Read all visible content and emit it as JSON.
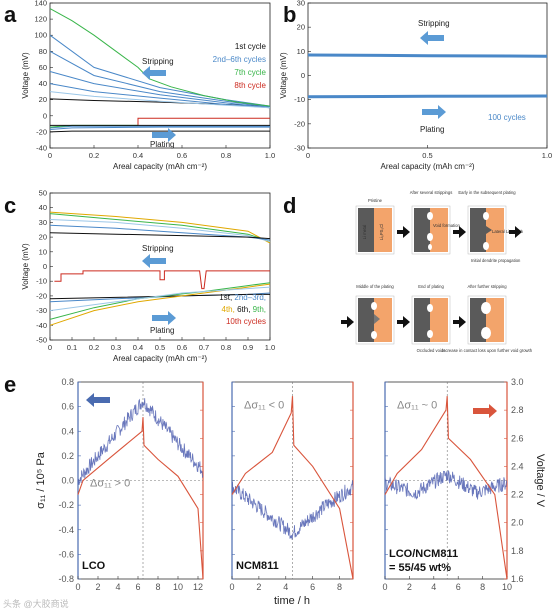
{
  "panel_labels": {
    "a": "a",
    "b": "b",
    "c": "c",
    "d": "d",
    "e": "e"
  },
  "colors": {
    "black": "#111111",
    "blue": "#4a88c8",
    "green": "#39b54a",
    "red": "#cc2a1f",
    "orange": "#e0a800",
    "lightblue": "#9cc7e8",
    "arrow": "#5b9bd5",
    "noise": "#4f5fb0",
    "voltage": "#d9553c",
    "metal": "#5a5a5a",
    "cathode": "#f3a46b"
  },
  "chart_data": [
    {
      "id": "a",
      "type": "line",
      "xlabel": "Areal capacity (mAh cm⁻²)",
      "ylabel": "Voltage (mV)",
      "xlim": [
        0,
        1.0
      ],
      "ylim": [
        -40,
        140
      ],
      "xticks": [
        0,
        0.2,
        0.4,
        0.6,
        0.8,
        1.0
      ],
      "xtick_labels": [
        "0",
        "0.2",
        "0.4",
        "0.6",
        "0.8",
        "1.0"
      ],
      "yticks": [
        -40,
        -20,
        0,
        20,
        40,
        60,
        80,
        100,
        120,
        140
      ],
      "ytick_labels": [
        "-40",
        "-20",
        "0",
        "20",
        "40",
        "60",
        "80",
        "100",
        "120",
        "140"
      ],
      "legend": [
        "1st cycle",
        "2nd–6th cycles",
        "7th cycle",
        "8th cycle"
      ],
      "legend_colors": [
        "#111111",
        "#4a88c8",
        "#39b54a",
        "#cc2a1f"
      ],
      "annotations": {
        "stripping": "Stripping",
        "plating": "Plating"
      },
      "series": [
        {
          "name": "1st cycle",
          "color": "#111111",
          "x": [
            0,
            0.2,
            0.5,
            0.8,
            1.0
          ],
          "y": [
            21,
            19,
            17,
            14,
            12
          ]
        },
        {
          "name": "2nd–6th cycles",
          "color": "#4a88c8",
          "x": [
            0,
            0.2,
            0.5,
            0.8,
            1.0
          ],
          "y": [
            100,
            60,
            35,
            20,
            12
          ]
        },
        {
          "color": "#4a88c8",
          "x": [
            0,
            0.2,
            0.5,
            0.8,
            1.0
          ],
          "y": [
            80,
            50,
            30,
            18,
            11
          ]
        },
        {
          "color": "#4a88c8",
          "x": [
            0,
            0.2,
            0.5,
            0.8,
            1.0
          ],
          "y": [
            55,
            40,
            26,
            16,
            10
          ]
        },
        {
          "color": "#4a88c8",
          "x": [
            0,
            0.2,
            0.5,
            0.8,
            1.0
          ],
          "y": [
            40,
            30,
            22,
            14,
            10
          ]
        },
        {
          "color": "#9cc7e8",
          "x": [
            0,
            0.2,
            0.5,
            0.8,
            1.0
          ],
          "y": [
            30,
            24,
            18,
            13,
            10
          ]
        },
        {
          "name": "7th cycle",
          "color": "#39b54a",
          "x": [
            0,
            0.1,
            0.2,
            0.3,
            0.4,
            0.45,
            0.55,
            0.7,
            0.85,
            1.0
          ],
          "y": [
            133,
            118,
            100,
            80,
            60,
            46,
            36,
            25,
            17,
            12
          ]
        },
        {
          "name": "8th cycle",
          "color": "#cc2a1f",
          "x": [
            0.4,
            0.4,
            1.0
          ],
          "y": [
            -12,
            -3,
            -3
          ]
        },
        {
          "color": "#111111",
          "x": [
            0,
            0.1,
            0.5,
            1.0
          ],
          "y": [
            -20,
            -19,
            -19,
            -19
          ]
        },
        {
          "color": "#4a88c8",
          "x": [
            0,
            0.1,
            0.5,
            1.0
          ],
          "y": [
            -17,
            -15,
            -14,
            -14
          ]
        },
        {
          "color": "#4a88c8",
          "x": [
            0,
            0.1,
            0.5,
            1.0
          ],
          "y": [
            -15,
            -13,
            -13,
            -13
          ]
        },
        {
          "color": "#39b54a",
          "x": [
            0,
            0.1,
            0.4
          ],
          "y": [
            -14,
            -12,
            -12
          ]
        },
        {
          "color": "#111111",
          "x": [
            0,
            0.5,
            1.0
          ],
          "y": [
            -12,
            -12,
            -12
          ]
        }
      ]
    },
    {
      "id": "b",
      "type": "line",
      "xlabel": "Areal capacity (mAh cm⁻²)",
      "ylabel": "Voltage (mV)",
      "xlim": [
        0,
        1.0
      ],
      "ylim": [
        -30,
        30
      ],
      "xticks": [
        0,
        0.5,
        1.0
      ],
      "xtick_labels": [
        "0",
        "0.5",
        "1.0"
      ],
      "yticks": [
        -30,
        -20,
        -10,
        0,
        10,
        20,
        30
      ],
      "ytick_labels": [
        "-30",
        "-20",
        "-10",
        "0",
        "10",
        "20",
        "30"
      ],
      "annotations": {
        "stripping": "Stripping",
        "plating": "Plating",
        "cycles": "100 cycles"
      },
      "series": [
        {
          "color": "#4a88c8",
          "x": [
            0,
            0.5,
            1.0
          ],
          "y": [
            8.5,
            8.2,
            8.0
          ]
        },
        {
          "color": "#4a88c8",
          "x": [
            0,
            0.5,
            1.0
          ],
          "y": [
            -8.8,
            -8.6,
            -8.5
          ]
        }
      ]
    },
    {
      "id": "c",
      "type": "line",
      "xlabel": "Areal capacity (mAh cm⁻²)",
      "ylabel": "Voltage (mV)",
      "xlim": [
        0,
        1.0
      ],
      "ylim": [
        -50,
        50
      ],
      "xticks": [
        0,
        0.1,
        0.2,
        0.3,
        0.4,
        0.5,
        0.6,
        0.7,
        0.8,
        0.9,
        1.0
      ],
      "xtick_labels": [
        "0",
        "0.1",
        "0.2",
        "0.3",
        "0.4",
        "0.5",
        "0.6",
        "0.7",
        "0.8",
        "0.9",
        "1.0"
      ],
      "yticks": [
        -50,
        -40,
        -30,
        -20,
        -10,
        0,
        10,
        20,
        30,
        40,
        50
      ],
      "ytick_labels": [
        "-50",
        "-40",
        "-30",
        "-20",
        "-10",
        "0",
        "10",
        "20",
        "30",
        "40",
        "50"
      ],
      "legend_lines": [
        [
          {
            "text": "1st, ",
            "color": "#111111"
          },
          {
            "text": "2nd–3rd,",
            "color": "#4a88c8"
          }
        ],
        [
          {
            "text": "4th, ",
            "color": "#e0a800"
          },
          {
            "text": "6th, ",
            "color": "#111111"
          },
          {
            "text": "9th,",
            "color": "#39b54a"
          }
        ],
        [
          {
            "text": "10th cycles",
            "color": "#cc2a1f"
          }
        ]
      ],
      "annotations": {
        "stripping": "Stripping",
        "plating": "Plating"
      },
      "series": [
        {
          "color": "#e0a800",
          "x": [
            0,
            0.3,
            0.6,
            0.9,
            1.0
          ],
          "y": [
            37,
            34,
            30,
            24,
            16
          ]
        },
        {
          "color": "#39b54a",
          "x": [
            0,
            0.3,
            0.6,
            0.9,
            1.0
          ],
          "y": [
            36,
            32,
            28,
            22,
            17
          ]
        },
        {
          "color": "#9cc7e8",
          "x": [
            0,
            0.3,
            0.6,
            0.9,
            1.0
          ],
          "y": [
            32,
            30,
            26,
            21,
            17
          ]
        },
        {
          "color": "#4a88c8",
          "x": [
            0,
            0.3,
            0.6,
            0.9,
            1.0
          ],
          "y": [
            28,
            26,
            23,
            20,
            18
          ]
        },
        {
          "color": "#111111",
          "x": [
            0,
            0.3,
            0.6,
            0.9,
            1.0
          ],
          "y": [
            23,
            22,
            21,
            20,
            19
          ]
        },
        {
          "color": "#4a88c8",
          "x": [
            0,
            0.3,
            0.6,
            0.9,
            1.0
          ],
          "y": [
            -24,
            -22,
            -20,
            -19,
            -18
          ]
        },
        {
          "color": "#111111",
          "x": [
            0,
            0.3,
            0.6,
            0.9,
            1.0
          ],
          "y": [
            -22,
            -21,
            -20,
            -19,
            -19
          ]
        },
        {
          "color": "#e0a800",
          "x": [
            0,
            0.2,
            0.4,
            0.7,
            0.9,
            1.0
          ],
          "y": [
            -40,
            -30,
            -24,
            -18,
            -14,
            -12
          ]
        },
        {
          "color": "#39b54a",
          "x": [
            0,
            0.2,
            0.4,
            0.7,
            0.9,
            1.0
          ],
          "y": [
            -36,
            -28,
            -22,
            -17,
            -13,
            -11
          ]
        },
        {
          "color": "#9cc7e8",
          "x": [
            0,
            0.3,
            0.6,
            1.0
          ],
          "y": [
            -30,
            -24,
            -18,
            -14
          ]
        },
        {
          "color": "#cc2a1f",
          "x": [
            0.02,
            0.05,
            0.05,
            0.15,
            0.15,
            0.5,
            0.5,
            0.52,
            0.52,
            0.68,
            0.69,
            0.7,
            0.71,
            1.0
          ],
          "y": [
            -10,
            -10,
            -5,
            -5,
            -3,
            -3,
            -9,
            -9,
            -3,
            -3,
            -15,
            -15,
            -3,
            -3
          ]
        }
      ]
    },
    {
      "id": "e",
      "type": "line",
      "xlabel": "time / h",
      "ylabel_left": "σ₁₁ / 10⁵ Pa",
      "ylabel_right": "Voltage / V",
      "ylim_left": [
        -0.8,
        0.8
      ],
      "ylim_right": [
        1.6,
        3.0
      ],
      "yticks_left": [
        -0.8,
        -0.6,
        -0.4,
        -0.2,
        0.0,
        0.2,
        0.4,
        0.6,
        0.8
      ],
      "ytick_labels_left": [
        "-0.8",
        "-0.6",
        "-0.4",
        "-0.2",
        "0.0",
        "0.2",
        "0.4",
        "0.6",
        "0.8"
      ],
      "yticks_right": [
        1.6,
        1.8,
        2.0,
        2.2,
        2.4,
        2.6,
        2.8,
        3.0
      ],
      "ytick_labels_right": [
        "1.6",
        "1.8",
        "2.0",
        "2.2",
        "2.4",
        "2.6",
        "2.8",
        "3.0"
      ],
      "panels": [
        {
          "sample": "LCO",
          "xlim": [
            0,
            12.5
          ],
          "xticks": [
            0,
            2,
            4,
            6,
            8,
            10,
            12
          ],
          "xtick_labels": [
            "0",
            "2",
            "4",
            "6",
            "8",
            "10",
            "12"
          ],
          "vline": 6.5,
          "annotation": "Δσ₁₁ > 0",
          "stress": {
            "x": [
              0,
              3,
              6.5,
              10,
              12.5
            ],
            "y": [
              0.0,
              0.3,
              0.65,
              0.3,
              0.08
            ]
          },
          "voltage": {
            "x": [
              0,
              0.5,
              3,
              6.4,
              6.5,
              6.6,
              8,
              10,
              12,
              12.5
            ],
            "y": [
              2.2,
              2.3,
              2.45,
              2.65,
              2.75,
              2.55,
              2.45,
              2.33,
              2.1,
              1.6
            ]
          }
        },
        {
          "sample": "NCM811",
          "xlim": [
            0,
            9
          ],
          "xticks": [
            0,
            2,
            4,
            6,
            8
          ],
          "xtick_labels": [
            "0",
            "2",
            "4",
            "6",
            "8"
          ],
          "vline": 4.5,
          "annotation": "Δσ₁₁ < 0",
          "stress": {
            "x": [
              0,
              2,
              4.5,
              7,
              9
            ],
            "y": [
              -0.05,
              -0.22,
              -0.43,
              -0.2,
              -0.05
            ]
          },
          "voltage": {
            "x": [
              0,
              1,
              3,
              4.4,
              4.5,
              4.6,
              6,
              8,
              9
            ],
            "y": [
              2.2,
              2.35,
              2.5,
              2.78,
              2.9,
              2.55,
              2.4,
              2.1,
              1.6
            ]
          }
        },
        {
          "sample": "LCO/NCM811",
          "sample2": "= 55/45 wt%",
          "xlim": [
            0,
            10
          ],
          "xticks": [
            0,
            2,
            4,
            6,
            8,
            10
          ],
          "xtick_labels": [
            "0",
            "2",
            "4",
            "6",
            "8",
            "10"
          ],
          "vline": 5.1,
          "annotation": "Δσ₁₁ ~ 0",
          "stress": {
            "x": [
              0,
              2.5,
              5.1,
              7.5,
              10
            ],
            "y": [
              -0.02,
              -0.1,
              0.05,
              -0.1,
              -0.02
            ]
          },
          "voltage": {
            "x": [
              0,
              1,
              3,
              5.0,
              5.1,
              5.2,
              7,
              9,
              10
            ],
            "y": [
              2.2,
              2.35,
              2.52,
              2.8,
              2.9,
              2.6,
              2.45,
              2.2,
              1.6
            ]
          }
        }
      ]
    }
  ],
  "schematic_d": {
    "steps": [
      "Pristine",
      "After several strippings",
      "Early in the subsequent plating",
      "Middle of the plating",
      "End of plating",
      "After further stripping"
    ],
    "li_metal": "Li metal",
    "li6ps5cl": "Li₆PS₅Cl",
    "tip_notes": [
      "Void formation",
      "Lateral Li growth",
      "Initial dendrite propagation",
      "Occluded voids",
      "Increase in contact loss upon further void growth"
    ]
  },
  "watermark": "头条 @大胶商说"
}
